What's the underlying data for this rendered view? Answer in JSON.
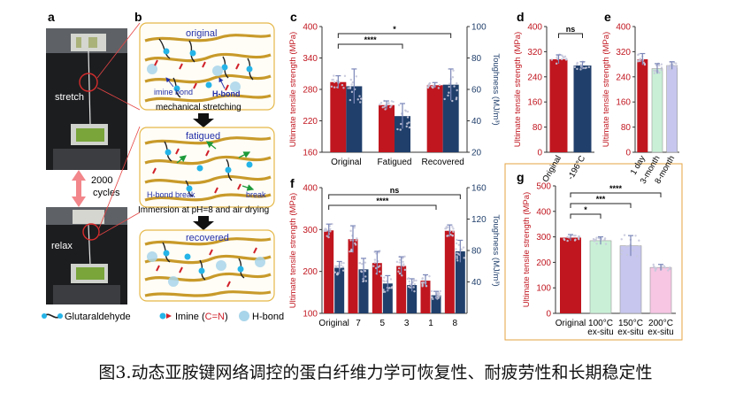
{
  "caption": "图3.动态亚胺键网络调控的蛋白纤维力学可恢复性、耐疲劳性和长期稳定性",
  "panel_a": {
    "letter": "a",
    "stretch_label": "stretch",
    "relax_label": "relax",
    "cycles_value": "2000",
    "cycles_unit": "cycles"
  },
  "panel_b": {
    "letter": "b",
    "state_original": "original",
    "state_fatigued": "fatigued",
    "state_recovered": "recovered",
    "imine_bond": "imine bond",
    "h_bond": "H-bond",
    "mech_stretch": "mechanical stretching",
    "h_bond_break": "H-bond break",
    "break": "break",
    "immersion": "Immersion at pH=8 and air drying",
    "legend_glutaraldehyde": "Glutaraldehyde",
    "legend_imine_prefix": "Imine (",
    "legend_imine_formula": "C=N",
    "legend_imine_suffix": ")",
    "legend_hbond": "H-bond"
  },
  "colors": {
    "strength_bar": "#c0161f",
    "toughness_bar": "#203f6b",
    "panel_border": "#e5b84a",
    "fiber": "#c89a2a",
    "bg_b": "#fffdf6",
    "green_bar": "#c9f0d6",
    "purple_bar": "#c6c6ee",
    "pink_bar": "#f6c6e3",
    "red_arrow": "#f2868a"
  },
  "chart_data": [
    {
      "panel": "c",
      "type": "bar",
      "categories": [
        "Original",
        "Fatigued",
        "Recovered"
      ],
      "ylabel": "Ultimate tensile strength (MPa)",
      "y2label": "Toughness (MJ/m³)",
      "ylim": [
        160,
        400
      ],
      "y2lim": [
        20,
        100
      ],
      "yticks": [
        160,
        220,
        280,
        340,
        400
      ],
      "y2ticks": [
        20,
        40,
        60,
        80,
        100
      ],
      "series": [
        {
          "name": "Ultimate tensile strength",
          "axis": "left",
          "values": [
            294,
            250,
            288
          ],
          "err": [
            12,
            8,
            5
          ]
        },
        {
          "name": "Toughness",
          "axis": "right",
          "values": [
            62,
            43,
            63
          ],
          "err": [
            11,
            8,
            10
          ]
        }
      ],
      "significance": [
        {
          "from": 0,
          "to": 1,
          "label": "****"
        },
        {
          "from": 0,
          "to": 2,
          "label": "*"
        }
      ]
    },
    {
      "panel": "d",
      "type": "bar",
      "categories": [
        "Original",
        "-196°C"
      ],
      "ylabel": "Ultimate tensile strength (MPa)",
      "ylim": [
        0,
        400
      ],
      "yticks": [
        0,
        80,
        160,
        240,
        320,
        400
      ],
      "values": [
        296,
        276
      ],
      "err": [
        14,
        12
      ],
      "significance": [
        {
          "from": 0,
          "to": 1,
          "label": "ns"
        }
      ]
    },
    {
      "panel": "e",
      "type": "bar",
      "categories": [
        "1 day",
        "3-month",
        "8-month"
      ],
      "ylabel": "Ultimate tensile strength (MPa)",
      "ylim": [
        0,
        400
      ],
      "yticks": [
        0,
        80,
        160,
        240,
        320,
        400
      ],
      "values": [
        296,
        266,
        276
      ],
      "err": [
        18,
        16,
        12
      ]
    },
    {
      "panel": "f",
      "type": "bar",
      "categories": [
        "Original",
        "7",
        "5",
        "3",
        "1",
        "8"
      ],
      "ylabel": "Ultimate tensile strength (MPa)",
      "y2label": "Toughness (MJ/m³)",
      "ylim": [
        100,
        400
      ],
      "y2lim": [
        0,
        160
      ],
      "yticks": [
        100,
        200,
        300,
        400
      ],
      "y2ticks": [
        40,
        80,
        120,
        160
      ],
      "series": [
        {
          "name": "Ultimate tensile strength",
          "axis": "left",
          "values": [
            298,
            277,
            220,
            213,
            178,
            297
          ],
          "err": [
            15,
            32,
            28,
            22,
            14,
            14
          ]
        },
        {
          "name": "Toughness",
          "axis": "right",
          "values": [
            58,
            56,
            38,
            36,
            23,
            79
          ],
          "err": [
            8,
            14,
            10,
            8,
            5,
            14
          ]
        }
      ],
      "significance": [
        {
          "from": 0,
          "to": 4,
          "label": "****"
        },
        {
          "from": 0,
          "to": 5,
          "label": "ns"
        }
      ]
    },
    {
      "panel": "g",
      "type": "bar",
      "categories": [
        "Original",
        "100°C\nex-situ",
        "150°C\nex-situ",
        "200°C\nex-situ"
      ],
      "ylabel": "Ultimate tensile strength (MPa)",
      "ylim": [
        0,
        500
      ],
      "yticks": [
        0,
        100,
        200,
        300,
        400,
        500
      ],
      "values": [
        297,
        285,
        265,
        180
      ],
      "err": [
        12,
        15,
        40,
        12
      ],
      "significance": [
        {
          "from": 0,
          "to": 1,
          "label": "*"
        },
        {
          "from": 0,
          "to": 2,
          "label": "***"
        },
        {
          "from": 0,
          "to": 3,
          "label": "****"
        }
      ]
    }
  ]
}
